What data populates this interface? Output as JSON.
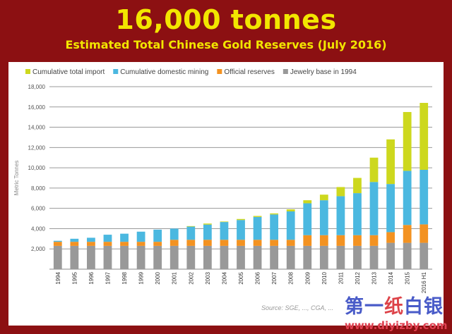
{
  "header": {
    "title": "16,000 tonnes",
    "subtitle": "Estimated Total Chinese Gold Reserves (July 2016)"
  },
  "watermark": {
    "logo_cn": "第一纸白银",
    "url": "www.diyizby.com"
  },
  "chart_data": {
    "type": "bar",
    "stacked": true,
    "title": "16,000 tonnes",
    "subtitle": "Estimated Total Chinese Gold Reserves (July 2016)",
    "ylabel": "Metric Tonnes",
    "xlabel": "",
    "ylim": [
      0,
      18000
    ],
    "yticks": [
      2000,
      4000,
      6000,
      8000,
      10000,
      12000,
      14000,
      16000,
      18000
    ],
    "ytick_labels": [
      "2,000",
      "4,000",
      "6,000",
      "8,000",
      "10,000",
      "12,000",
      "14,000",
      "16,000",
      "18,000"
    ],
    "grid": true,
    "legend_position": "top",
    "source": "Source: SGE, ..., CGA, ...",
    "categories": [
      "1994",
      "1995",
      "1996",
      "1997",
      "1998",
      "1999",
      "2000",
      "2001",
      "2002",
      "2003",
      "2004",
      "2005",
      "2006",
      "2007",
      "2008",
      "2009",
      "2010",
      "2011",
      "2012",
      "2013",
      "2014",
      "2015",
      "2016 H1"
    ],
    "series": [
      {
        "name": "Jewelry base in 1994",
        "color": "#999999",
        "values": [
          2300,
          2300,
          2300,
          2300,
          2300,
          2300,
          2300,
          2300,
          2300,
          2300,
          2300,
          2300,
          2300,
          2300,
          2300,
          2300,
          2300,
          2300,
          2300,
          2300,
          2600,
          2600,
          2600
        ]
      },
      {
        "name": "Official reserves",
        "color": "#f39221",
        "values": [
          400,
          400,
          400,
          400,
          400,
          400,
          400,
          600,
          600,
          600,
          600,
          600,
          600,
          600,
          600,
          1054,
          1054,
          1054,
          1054,
          1054,
          1054,
          1760,
          1820
        ]
      },
      {
        "name": "Cumulative domestic mining",
        "color": "#4bb8e0",
        "values": [
          100,
          300,
          400,
          700,
          800,
          1000,
          1200,
          1100,
          1300,
          1500,
          1750,
          1950,
          2250,
          2500,
          2800,
          3146,
          3446,
          3846,
          4146,
          5246,
          4746,
          5340,
          5380
        ]
      },
      {
        "name": "Cumulative total import",
        "color": "#cdd81e",
        "values": [
          0,
          0,
          0,
          0,
          0,
          0,
          0,
          0,
          50,
          100,
          50,
          100,
          100,
          100,
          200,
          300,
          550,
          900,
          1500,
          2400,
          4400,
          5800,
          6600
        ]
      }
    ],
    "legend_order": [
      "Cumulative total import",
      "Cumulative domestic mining",
      "Official reserves",
      "Jewelry base in 1994"
    ]
  }
}
